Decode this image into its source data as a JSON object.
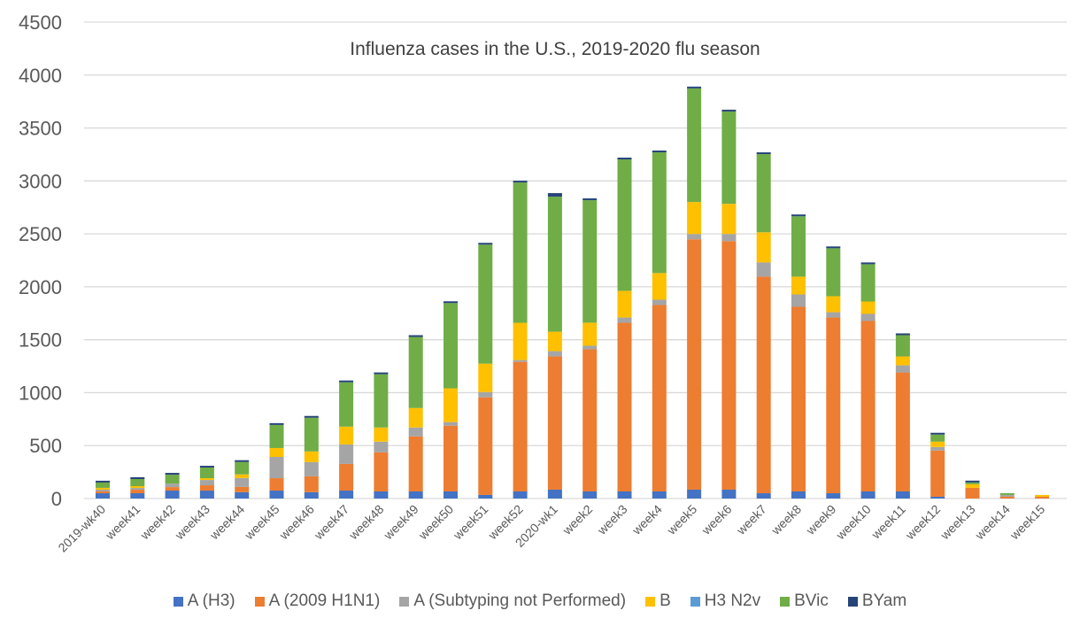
{
  "chart_data": {
    "type": "bar",
    "stacked": true,
    "title": "Influenza cases in the U.S., 2019-2020 flu season",
    "xlabel": "",
    "ylabel": "",
    "ylim": [
      0,
      4500
    ],
    "yticks": [
      "0",
      "500",
      "1000",
      "1500",
      "2000",
      "2500",
      "3000",
      "3500",
      "4000",
      "4500"
    ],
    "grid": true,
    "legend_position": "bottom",
    "categories": [
      "2019-wk40",
      "week41",
      "week42",
      "week43",
      "week44",
      "week45",
      "week46",
      "week47",
      "week48",
      "week49",
      "week50",
      "week51",
      "week52",
      "2020-wk1",
      "week2",
      "week3",
      "week4",
      "week5",
      "week6",
      "week7",
      "week8",
      "week9",
      "week10",
      "week11",
      "week12",
      "week13",
      "week14",
      "week15"
    ],
    "series": [
      {
        "name": "A (H3)",
        "color": "#4472C4",
        "values": [
          50,
          50,
          75,
          75,
          60,
          75,
          60,
          75,
          67,
          67,
          67,
          34,
          67,
          84,
          67,
          67,
          67,
          84,
          84,
          50,
          67,
          50,
          67,
          67,
          17,
          0,
          0,
          0
        ]
      },
      {
        "name": "A (2009 H1N1)",
        "color": "#ED7D31",
        "values": [
          17,
          33,
          33,
          50,
          50,
          117,
          150,
          252,
          369,
          520,
          621,
          922,
          1224,
          1258,
          1342,
          1593,
          1761,
          2365,
          2348,
          2046,
          1744,
          1660,
          1610,
          1124,
          436,
          101,
          17,
          17
        ]
      },
      {
        "name": "A (Subtyping not Performed)",
        "color": "#A5A5A5",
        "values": [
          17,
          17,
          33,
          50,
          84,
          201,
          134,
          184,
          101,
          84,
          34,
          50,
          17,
          50,
          34,
          50,
          50,
          50,
          67,
          134,
          117,
          50,
          67,
          67,
          34,
          0,
          17,
          0
        ]
      },
      {
        "name": "B",
        "color": "#FFC000",
        "values": [
          17,
          17,
          0,
          17,
          34,
          84,
          101,
          168,
          134,
          184,
          319,
          268,
          352,
          184,
          218,
          252,
          252,
          302,
          285,
          285,
          168,
          151,
          117,
          84,
          50,
          34,
          0,
          17
        ]
      },
      {
        "name": "H3 N2v",
        "color": "#5B9BD5",
        "values": [
          0,
          0,
          0,
          0,
          0,
          0,
          0,
          0,
          0,
          0,
          0,
          0,
          0,
          0,
          0,
          0,
          0,
          0,
          0,
          0,
          0,
          0,
          0,
          0,
          0,
          0,
          0,
          0
        ]
      },
      {
        "name": "BVic",
        "color": "#70AD47",
        "values": [
          50,
          67,
          84,
          100,
          117,
          218,
          318,
          419,
          503,
          671,
          805,
          1124,
          1325,
          1275,
          1157,
          1241,
          1140,
          1073,
          872,
          738,
          570,
          453,
          352,
          201,
          67,
          17,
          17,
          0
        ]
      },
      {
        "name": "BYam",
        "color": "#264478",
        "values": [
          17,
          17,
          17,
          17,
          17,
          17,
          17,
          17,
          17,
          17,
          17,
          17,
          17,
          34,
          17,
          17,
          17,
          17,
          17,
          17,
          17,
          17,
          17,
          17,
          17,
          17,
          0,
          0
        ]
      }
    ]
  }
}
